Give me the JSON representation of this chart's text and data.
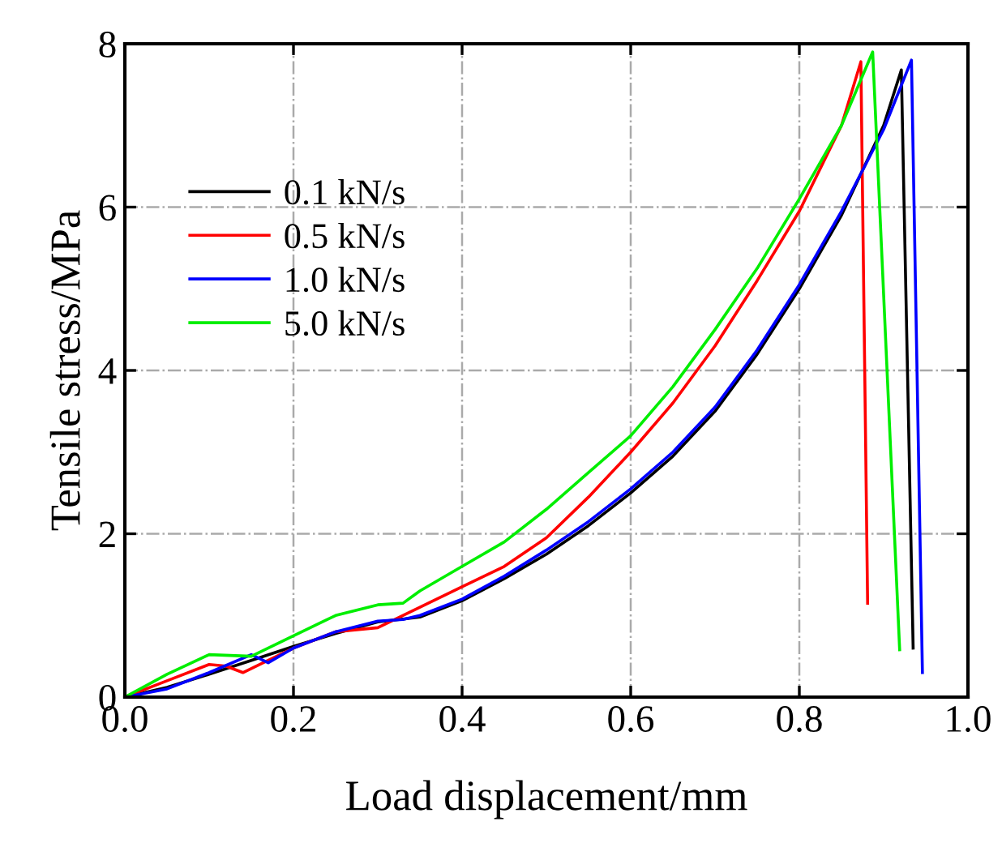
{
  "chart_data": {
    "type": "line",
    "xlabel": "Load displacement/mm",
    "ylabel": "Tensile stress/MPa",
    "xlim": [
      0,
      1.0
    ],
    "ylim": [
      0,
      8
    ],
    "xticks": [
      {
        "value": 0,
        "label": "0.0"
      },
      0.2,
      0.4,
      0.6,
      0.8,
      {
        "value": 1.0,
        "label": "1.0"
      }
    ],
    "yticks": [
      0,
      2,
      4,
      6,
      8
    ],
    "grid": true,
    "legend": "top left",
    "marker": "none",
    "line_style": "solid",
    "series": [
      {
        "name": "0.1 kN/s",
        "color": "#000000",
        "x": [
          0,
          0.05,
          0.1,
          0.15,
          0.2,
          0.25,
          0.3,
          0.35,
          0.4,
          0.45,
          0.5,
          0.55,
          0.6,
          0.65,
          0.7,
          0.75,
          0.8,
          0.85,
          0.9,
          0.921,
          0.935
        ],
        "values": [
          0,
          0.12,
          0.28,
          0.45,
          0.62,
          0.78,
          0.92,
          0.98,
          1.18,
          1.45,
          1.75,
          2.1,
          2.5,
          2.95,
          3.5,
          4.2,
          5.0,
          5.9,
          7.0,
          7.68,
          0.6
        ]
      },
      {
        "name": "0.5 kN/s",
        "color": "#ff0000",
        "x": [
          0,
          0.05,
          0.1,
          0.12,
          0.14,
          0.17,
          0.2,
          0.25,
          0.3,
          0.35,
          0.4,
          0.45,
          0.5,
          0.55,
          0.6,
          0.65,
          0.7,
          0.75,
          0.8,
          0.85,
          0.873,
          0.881
        ],
        "values": [
          0,
          0.2,
          0.4,
          0.38,
          0.3,
          0.45,
          0.6,
          0.8,
          0.85,
          1.1,
          1.35,
          1.6,
          1.95,
          2.45,
          3.0,
          3.6,
          4.3,
          5.1,
          5.95,
          7.0,
          7.78,
          1.15
        ]
      },
      {
        "name": "1.0 kN/s",
        "color": "#0000ff",
        "x": [
          0,
          0.05,
          0.1,
          0.15,
          0.17,
          0.2,
          0.25,
          0.3,
          0.33,
          0.35,
          0.4,
          0.45,
          0.5,
          0.55,
          0.6,
          0.65,
          0.7,
          0.75,
          0.8,
          0.85,
          0.9,
          0.933,
          0.946
        ],
        "values": [
          0,
          0.1,
          0.3,
          0.52,
          0.42,
          0.6,
          0.8,
          0.93,
          0.95,
          1.0,
          1.2,
          1.48,
          1.8,
          2.15,
          2.55,
          3.0,
          3.55,
          4.25,
          5.05,
          5.95,
          6.95,
          7.8,
          0.3
        ]
      },
      {
        "name": "5.0 kN/s",
        "color": "#00ee00",
        "x": [
          0,
          0.05,
          0.1,
          0.15,
          0.2,
          0.25,
          0.3,
          0.33,
          0.35,
          0.4,
          0.45,
          0.5,
          0.55,
          0.6,
          0.65,
          0.7,
          0.75,
          0.8,
          0.85,
          0.887,
          0.919
        ],
        "values": [
          0,
          0.28,
          0.52,
          0.5,
          0.75,
          1.0,
          1.13,
          1.15,
          1.3,
          1.6,
          1.9,
          2.3,
          2.75,
          3.2,
          3.8,
          4.5,
          5.25,
          6.1,
          7.0,
          7.9,
          0.58
        ]
      }
    ]
  }
}
